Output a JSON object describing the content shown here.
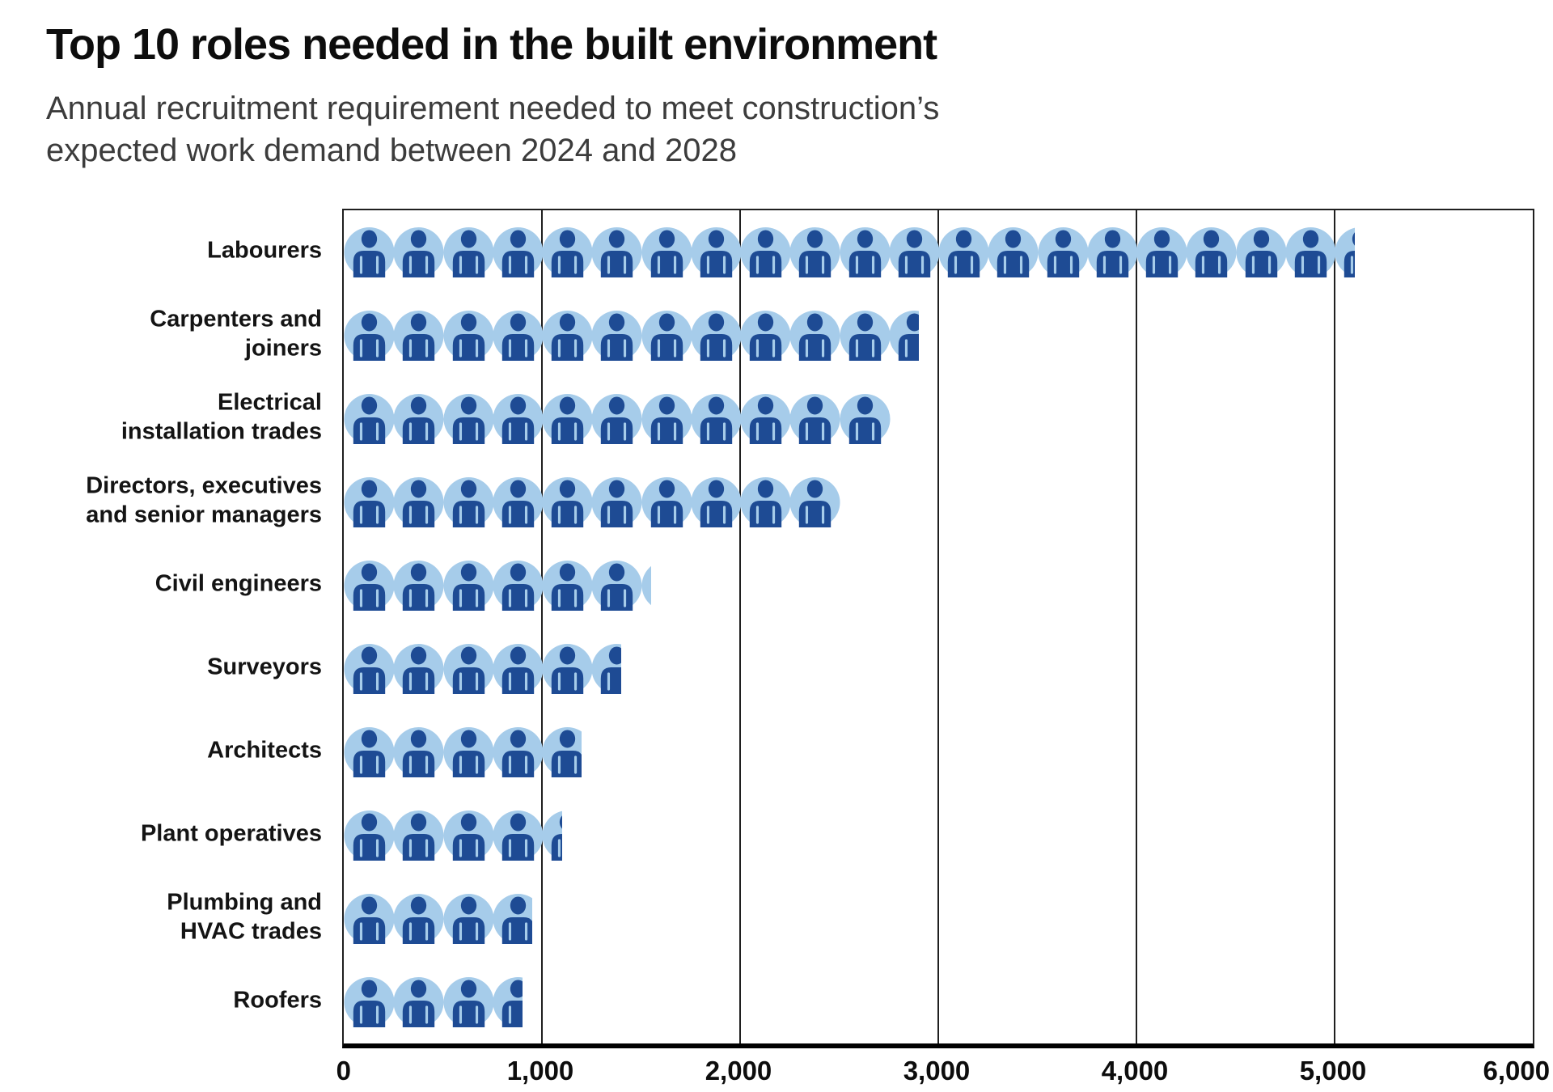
{
  "header": {
    "title": "Top 10 roles needed in the built environment",
    "subtitle": "Annual recruitment requirement needed to meet construction’s expected work demand between 2024 and 2028"
  },
  "chart_data": {
    "type": "bar",
    "subtype": "pictogram",
    "title": "Top 10 roles needed in the built environment",
    "subtitle": "Annual recruitment requirement needed to meet construction’s expected work demand between 2024 and 2028",
    "categories": [
      "Labourers",
      "Carpenters and joiners",
      "Electrical installation trades",
      "Directors, executives and senior managers",
      "Civil engineers",
      "Surveyors",
      "Architects",
      "Plant operatives",
      "Plumbing and HVAC trades",
      "Roofers"
    ],
    "category_label_lines": [
      [
        "Labourers"
      ],
      [
        "Carpenters and",
        "joiners"
      ],
      [
        "Electrical",
        "installation trades"
      ],
      [
        "Directors, executives",
        "and senior managers"
      ],
      [
        "Civil engineers"
      ],
      [
        "Surveyors"
      ],
      [
        "Architects"
      ],
      [
        "Plant operatives"
      ],
      [
        "Plumbing and",
        "HVAC trades"
      ],
      [
        "Roofers"
      ]
    ],
    "values": [
      5100,
      2900,
      2750,
      2500,
      1550,
      1400,
      1200,
      1100,
      950,
      900
    ],
    "unit_per_icon": 250,
    "icon": "person-icon",
    "xlabel": "",
    "ylabel": "",
    "xlim": [
      0,
      6000
    ],
    "x_ticks": [
      0,
      1000,
      2000,
      3000,
      4000,
      5000,
      6000
    ],
    "x_tick_labels": [
      "0",
      "1,000",
      "2,000",
      "3,000",
      "4,000",
      "5,000",
      "6,000"
    ],
    "grid": "vertical gridlines every 1,000",
    "legend": "none",
    "colors": {
      "icon_circle": "#A6CCEA",
      "icon_person": "#1E4B94",
      "gridline": "#1f1f1f",
      "axis": "#000000",
      "label_text": "#141414"
    }
  }
}
